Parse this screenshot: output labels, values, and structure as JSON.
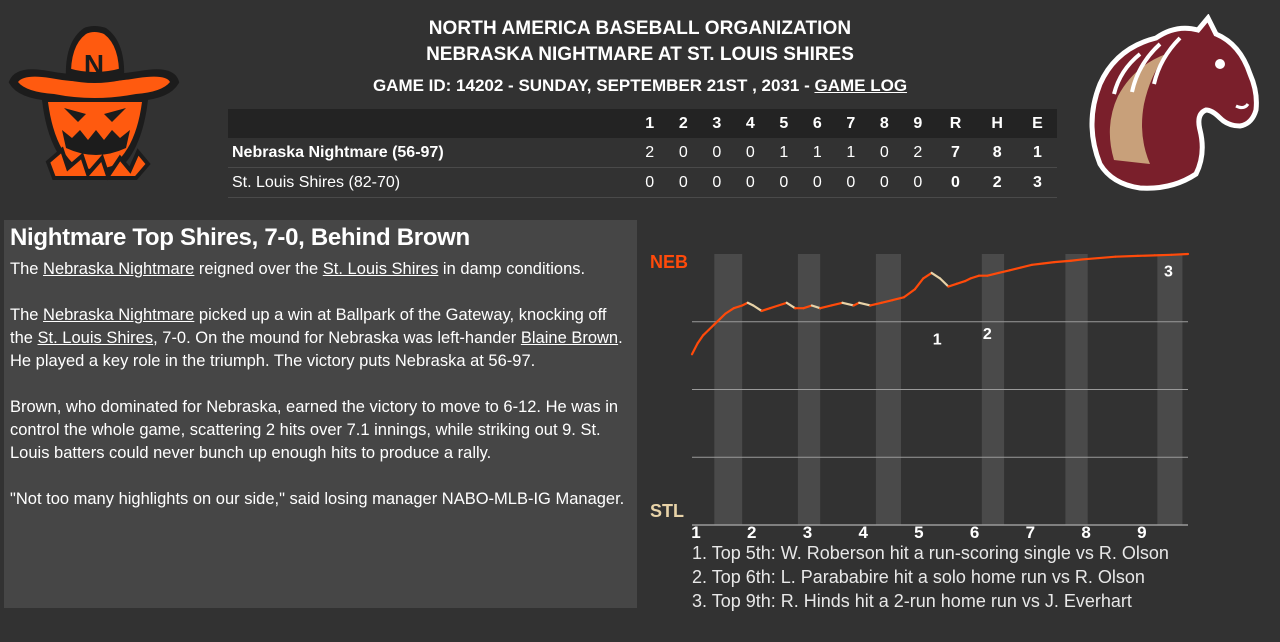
{
  "header": {
    "organization": "NORTH AMERICA BASEBALL ORGANIZATION",
    "matchup": "NEBRASKA NIGHTMARE AT ST. LOUIS SHIRES",
    "game_id_prefix": "GAME ID: 14202 - SUNDAY, SEPTEMBER 21ST , 2031 -",
    "game_log_link": "GAME LOG"
  },
  "logos": {
    "left_letter": "N"
  },
  "boxscore": {
    "columns": [
      "1",
      "2",
      "3",
      "4",
      "5",
      "6",
      "7",
      "8",
      "9",
      "R",
      "H",
      "E"
    ],
    "rows": [
      {
        "team": "Nebraska Nightmare (56-97)",
        "innings": [
          "2",
          "0",
          "0",
          "0",
          "1",
          "1",
          "1",
          "0",
          "2"
        ],
        "r": "7",
        "h": "8",
        "e": "1"
      },
      {
        "team": "St. Louis Shires (82-70)",
        "innings": [
          "0",
          "0",
          "0",
          "0",
          "0",
          "0",
          "0",
          "0",
          "0"
        ],
        "r": "0",
        "h": "2",
        "e": "3"
      }
    ]
  },
  "article": {
    "headline": "Nightmare Top Shires, 7-0, Behind Brown",
    "p1": {
      "t1": "The ",
      "link1": "Nebraska Nightmare",
      "t2": " reigned over the ",
      "link2": "St. Louis Shires",
      "t3": " in damp conditions."
    },
    "p2": {
      "t1": "The ",
      "link1": "Nebraska Nightmare",
      "t2": " picked up a win at Ballpark of the Gateway, knocking off the ",
      "link2": "St. Louis Shires",
      "t3": ", 7-0. On the mound for Nebraska was left-hander ",
      "link3": "Blaine Brown",
      "t4": ". He played a key role in the triumph. The victory puts Nebraska at 56-97."
    },
    "p3": "Brown, who dominated for Nebraska, earned the victory to move to 6-12. He was in control the whole game, scattering 2 hits over 7.1 innings, while striking out 9. St. Louis batters could never bunch up enough hits to produce a rally.",
    "p4": "\"Not too many highlights on our side,\" said losing manager NABO-MLB-IG Manager."
  },
  "chart_data": {
    "type": "line",
    "top_label": "NEB",
    "bottom_label": "STL",
    "x_ticks": [
      "1",
      "2",
      "3",
      "4",
      "5",
      "6",
      "7",
      "8",
      "9"
    ],
    "x_tick_positions": [
      1,
      2,
      3,
      4,
      5,
      6,
      7,
      8,
      9
    ],
    "markers": [
      {
        "label": "1",
        "x": 5.4,
        "y": 0.74
      },
      {
        "label": "2",
        "x": 6.3,
        "y": 0.76
      },
      {
        "label": "3",
        "x": 9.55,
        "y": 0.99
      }
    ],
    "series": [
      {
        "color_neb": "#ff4a0a",
        "color_stl": "#e8d3a8",
        "points": [
          [
            1,
            0.63
          ],
          [
            1.1,
            0.67
          ],
          [
            1.2,
            0.7
          ],
          [
            1.3,
            0.72
          ],
          [
            1.4,
            0.74
          ],
          [
            1.5,
            0.76
          ],
          [
            1.6,
            0.78
          ],
          [
            1.75,
            0.8
          ],
          [
            1.9,
            0.81
          ],
          [
            2.0,
            0.82
          ],
          [
            2.1,
            0.81
          ],
          [
            2.25,
            0.79
          ],
          [
            2.4,
            0.8
          ],
          [
            2.55,
            0.81
          ],
          [
            2.7,
            0.82
          ],
          [
            2.85,
            0.8
          ],
          [
            3.0,
            0.8
          ],
          [
            3.15,
            0.81
          ],
          [
            3.3,
            0.8
          ],
          [
            3.5,
            0.81
          ],
          [
            3.7,
            0.82
          ],
          [
            3.9,
            0.81
          ],
          [
            4.0,
            0.82
          ],
          [
            4.2,
            0.81
          ],
          [
            4.4,
            0.82
          ],
          [
            4.6,
            0.83
          ],
          [
            4.8,
            0.84
          ],
          [
            5.0,
            0.87
          ],
          [
            5.15,
            0.91
          ],
          [
            5.3,
            0.93
          ],
          [
            5.45,
            0.91
          ],
          [
            5.6,
            0.88
          ],
          [
            5.75,
            0.89
          ],
          [
            5.9,
            0.9
          ],
          [
            6.0,
            0.91
          ],
          [
            6.15,
            0.92
          ],
          [
            6.3,
            0.92
          ],
          [
            6.5,
            0.93
          ],
          [
            6.7,
            0.94
          ],
          [
            6.9,
            0.95
          ],
          [
            7.1,
            0.96
          ],
          [
            7.3,
            0.965
          ],
          [
            7.5,
            0.97
          ],
          [
            7.8,
            0.975
          ],
          [
            8.0,
            0.98
          ],
          [
            8.3,
            0.985
          ],
          [
            8.6,
            0.99
          ],
          [
            9.0,
            0.993
          ],
          [
            9.3,
            0.995
          ],
          [
            9.6,
            0.997
          ],
          [
            9.9,
            1.0
          ]
        ]
      }
    ],
    "grid": true
  },
  "plays": [
    "1. Top 5th: W. Roberson hit a run-scoring single vs R. Olson",
    "2. Top 6th: L. Parababire hit a solo home run vs R. Olson",
    "3. Top 9th: R. Hinds hit a 2-run home run vs J. Everhart"
  ]
}
